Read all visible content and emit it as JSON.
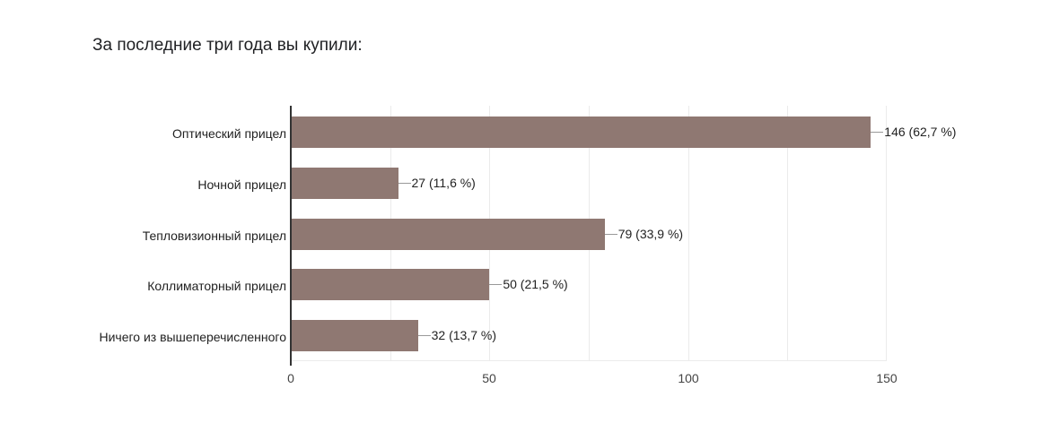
{
  "title": "За последние три года вы купили:",
  "chart_data": {
    "type": "bar",
    "orientation": "horizontal",
    "title": "За последние три года вы купили:",
    "categories": [
      "Оптический прицел",
      "Ночной прицел",
      "Тепловизионный прицел",
      "Коллиматорный прицел",
      "Ничего из вышеперечисленного"
    ],
    "values": [
      146,
      27,
      79,
      50,
      32
    ],
    "percentages": [
      "62,7 %",
      "11,6 %",
      "33,9 %",
      "21,5 %",
      "13,7 %"
    ],
    "data_labels": [
      "146 (62,7 %)",
      "27 (11,6 %)",
      "79 (33,9 %)",
      "50 (21,5 %)",
      "32 (13,7 %)"
    ],
    "xlabel": "",
    "ylabel": "",
    "xlim": [
      0,
      150
    ],
    "x_ticks": [
      "0",
      "50",
      "100",
      "150"
    ],
    "grid": true,
    "legend": "none",
    "bar_color": "#8f7872"
  }
}
